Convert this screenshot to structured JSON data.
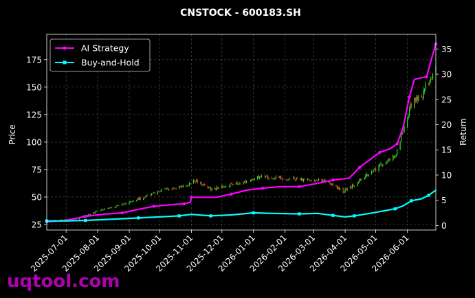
{
  "chart_data": {
    "type": "line",
    "title": "CNSTOCK - 600183.SH",
    "ylabel_left": "Price",
    "ylabel_right": "Return",
    "left_ticks": [
      25,
      50,
      75,
      100,
      125,
      150,
      175
    ],
    "right_ticks": [
      0,
      5,
      10,
      15,
      20,
      25,
      30,
      35
    ],
    "x_ticks": [
      "2025-07-01",
      "2025-08-01",
      "2025-09-01",
      "2025-10-01",
      "2025-11-01",
      "2025-12-01",
      "2026-01-01",
      "2026-02-01",
      "2026-03-01",
      "2026-04-01",
      "2026-05-01",
      "2026-06-01"
    ],
    "ylim_left": [
      20,
      198
    ],
    "ylim_right": [
      -0.9,
      37.9
    ],
    "xlim": [
      "2025-06-12",
      "2026-06-29"
    ],
    "grid": true,
    "legend_position": "top-left",
    "candle_up_color": "#22ee22",
    "candle_down_color": "#ff3333",
    "price_anchors": [
      [
        "2025-06-15",
        28
      ],
      [
        "2025-07-10",
        30
      ],
      [
        "2025-08-01",
        37
      ],
      [
        "2025-08-20",
        42
      ],
      [
        "2025-09-10",
        48
      ],
      [
        "2025-09-28",
        55
      ],
      [
        "2025-10-12",
        58
      ],
      [
        "2025-10-25",
        60
      ],
      [
        "2025-11-05",
        65
      ],
      [
        "2025-11-20",
        57
      ],
      [
        "2025-12-05",
        60
      ],
      [
        "2025-12-20",
        63
      ],
      [
        "2026-01-05",
        68
      ],
      [
        "2026-01-20",
        68
      ],
      [
        "2026-02-05",
        67
      ],
      [
        "2026-02-25",
        65
      ],
      [
        "2026-03-10",
        65
      ],
      [
        "2026-03-20",
        61
      ],
      [
        "2026-03-30",
        55
      ],
      [
        "2026-04-05",
        58
      ],
      [
        "2026-04-20",
        68
      ],
      [
        "2026-05-05",
        78
      ],
      [
        "2026-05-20",
        88
      ],
      [
        "2026-05-28",
        110
      ],
      [
        "2026-06-05",
        135
      ],
      [
        "2026-06-15",
        142
      ],
      [
        "2026-06-29",
        170
      ]
    ],
    "series": [
      {
        "name": "AI Strategy",
        "color": "#ff00ff",
        "marker": "circle",
        "points": [
          [
            "2025-06-12",
            0.7
          ],
          [
            "2025-07-01",
            1.0
          ],
          [
            "2025-07-20",
            1.8
          ],
          [
            "2025-08-05",
            2.2
          ],
          [
            "2025-08-25",
            2.5
          ],
          [
            "2025-09-10",
            3.2
          ],
          [
            "2025-09-25",
            3.8
          ],
          [
            "2025-10-10",
            4.1
          ],
          [
            "2025-10-25",
            4.3
          ],
          [
            "2025-10-31",
            4.6
          ],
          [
            "2025-11-01",
            5.6
          ],
          [
            "2025-11-25",
            5.6
          ],
          [
            "2025-12-10",
            6.2
          ],
          [
            "2025-12-25",
            7.0
          ],
          [
            "2026-01-10",
            7.4
          ],
          [
            "2026-01-28",
            7.7
          ],
          [
            "2026-02-15",
            7.7
          ],
          [
            "2026-03-01",
            8.2
          ],
          [
            "2026-03-20",
            9.0
          ],
          [
            "2026-04-05",
            9.4
          ],
          [
            "2026-04-15",
            11.5
          ],
          [
            "2026-04-25",
            13.0
          ],
          [
            "2026-05-05",
            14.5
          ],
          [
            "2026-05-15",
            15.2
          ],
          [
            "2026-05-22",
            16.2
          ],
          [
            "2026-05-28",
            19.5
          ],
          [
            "2026-06-03",
            25.5
          ],
          [
            "2026-06-08",
            29.0
          ],
          [
            "2026-06-20",
            29.5
          ],
          [
            "2026-06-24",
            32.5
          ],
          [
            "2026-06-29",
            36.0
          ]
        ]
      },
      {
        "name": "Buy-and-Hold",
        "color": "#00ffff",
        "marker": "square",
        "points": [
          [
            "2025-06-12",
            0.9
          ],
          [
            "2025-07-01",
            0.9
          ],
          [
            "2025-07-20",
            1.0
          ],
          [
            "2025-08-10",
            1.2
          ],
          [
            "2025-09-10",
            1.5
          ],
          [
            "2025-10-01",
            1.7
          ],
          [
            "2025-10-20",
            1.9
          ],
          [
            "2025-11-01",
            2.2
          ],
          [
            "2025-11-20",
            1.9
          ],
          [
            "2025-12-10",
            2.1
          ],
          [
            "2026-01-01",
            2.5
          ],
          [
            "2026-01-20",
            2.4
          ],
          [
            "2026-02-15",
            2.3
          ],
          [
            "2026-03-05",
            2.4
          ],
          [
            "2026-03-20",
            2.0
          ],
          [
            "2026-04-01",
            1.7
          ],
          [
            "2026-04-10",
            1.9
          ],
          [
            "2026-05-01",
            2.6
          ],
          [
            "2026-05-20",
            3.3
          ],
          [
            "2026-05-28",
            3.9
          ],
          [
            "2026-06-05",
            4.9
          ],
          [
            "2026-06-15",
            5.3
          ],
          [
            "2026-06-22",
            6.0
          ],
          [
            "2026-06-29",
            7.0
          ]
        ]
      }
    ]
  },
  "watermark": "uqtool.com"
}
